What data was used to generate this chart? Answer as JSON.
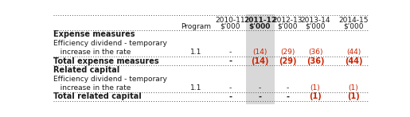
{
  "col_headers_row1": [
    "",
    "Program",
    "2010-11",
    "2011-12",
    "2012-13",
    "2013-14",
    "2014-15"
  ],
  "col_headers_row2": [
    "",
    "",
    "$'000",
    "$'000",
    "$'000",
    "$'000",
    "$'000"
  ],
  "rows": [
    {
      "label": "Expense measures",
      "indent": false,
      "bold": true,
      "program": "",
      "vals": [
        "",
        "",
        "",
        "",
        ""
      ]
    },
    {
      "label": "Efficiency dividend - temporary",
      "indent": false,
      "bold": false,
      "program": "",
      "vals": [
        "",
        "",
        "",
        "",
        ""
      ]
    },
    {
      "label": "   increase in the rate",
      "indent": true,
      "bold": false,
      "program": "1.1",
      "vals": [
        "-",
        "(14)",
        "(29)",
        "(36)",
        "(44)"
      ]
    },
    {
      "label": "Total expense measures",
      "indent": false,
      "bold": true,
      "program": "",
      "vals": [
        "-",
        "(14)",
        "(29)",
        "(36)",
        "(44)"
      ]
    },
    {
      "label": "Related capital",
      "indent": false,
      "bold": true,
      "program": "",
      "vals": [
        "",
        "",
        "",
        "",
        ""
      ]
    },
    {
      "label": "Efficiency dividend - temporary",
      "indent": false,
      "bold": false,
      "program": "",
      "vals": [
        "",
        "",
        "",
        "",
        ""
      ]
    },
    {
      "label": "   increase in the rate",
      "indent": true,
      "bold": false,
      "program": "1.1",
      "vals": [
        "-",
        "-",
        "-",
        "(1)",
        "(1)"
      ]
    },
    {
      "label": "Total related capital",
      "indent": false,
      "bold": true,
      "program": "",
      "vals": [
        "-",
        "-",
        "-",
        "(1)",
        "(1)"
      ]
    }
  ],
  "highlight_color": "#d8d8d8",
  "text_color": "#1a1a1a",
  "red_color": "#cc2200",
  "figsize": [
    5.15,
    1.47
  ],
  "dpi": 100,
  "font_size": 6.5,
  "bold_font_size": 7.0
}
